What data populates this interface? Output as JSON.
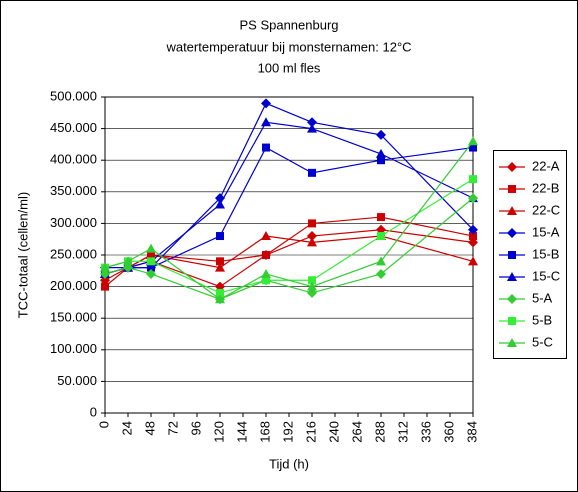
{
  "chart_data": {
    "type": "line",
    "title": "PS Spannenburg",
    "subtitle": [
      "watertemperatuur bij monsternamen: 12°C",
      "100 ml fles"
    ],
    "x_label": "Tijd (h)",
    "y_label": "TCC-totaal (cellen/ml)",
    "x": [
      0,
      24,
      48,
      120,
      168,
      216,
      288,
      384
    ],
    "xlim": [
      0,
      384
    ],
    "xticks": [
      0,
      24,
      48,
      72,
      96,
      120,
      144,
      168,
      192,
      216,
      240,
      264,
      288,
      312,
      336,
      360,
      384
    ],
    "ylim": [
      0,
      500000
    ],
    "yticks": [
      0,
      {
        "value": 50000,
        "label": "50.000"
      },
      {
        "value": 100000,
        "label": "100.000"
      },
      {
        "value": 150000,
        "label": "150.000"
      },
      {
        "value": 200000,
        "label": "200.000"
      },
      {
        "value": 250000,
        "label": "250.000"
      },
      {
        "value": 300000,
        "label": "300.000"
      },
      {
        "value": 350000,
        "label": "350.000"
      },
      {
        "value": 400000,
        "label": "400.000"
      },
      {
        "value": 450000,
        "label": "450.000"
      },
      {
        "value": 500000,
        "label": "500.000"
      }
    ],
    "grid": true,
    "legend": "right",
    "series": [
      {
        "name": "22-A",
        "color": "#cc0000",
        "marker": "diamond",
        "values": [
          210000,
          230000,
          240000,
          200000,
          250000,
          280000,
          290000,
          270000
        ]
      },
      {
        "name": "22-B",
        "color": "#cc0000",
        "marker": "square",
        "values": [
          200000,
          230000,
          250000,
          240000,
          250000,
          300000,
          310000,
          280000
        ]
      },
      {
        "name": "22-C",
        "color": "#cc0000",
        "marker": "triangle",
        "values": [
          220000,
          230000,
          250000,
          230000,
          280000,
          270000,
          280000,
          240000
        ]
      },
      {
        "name": "15-A",
        "color": "#0000cc",
        "marker": "diamond",
        "values": [
          230000,
          230000,
          230000,
          340000,
          490000,
          460000,
          440000,
          290000
        ]
      },
      {
        "name": "15-B",
        "color": "#0000cc",
        "marker": "square",
        "values": [
          220000,
          230000,
          230000,
          280000,
          420000,
          380000,
          400000,
          420000
        ]
      },
      {
        "name": "15-C",
        "color": "#0000cc",
        "marker": "triangle",
        "values": [
          220000,
          230000,
          240000,
          330000,
          460000,
          450000,
          410000,
          340000
        ]
      },
      {
        "name": "5-A",
        "color": "#33cc33",
        "marker": "diamond",
        "values": [
          220000,
          230000,
          220000,
          180000,
          210000,
          190000,
          220000,
          340000
        ]
      },
      {
        "name": "5-B",
        "color": "#33ee33",
        "marker": "square",
        "values": [
          230000,
          240000,
          240000,
          190000,
          210000,
          210000,
          280000,
          370000
        ]
      },
      {
        "name": "5-C",
        "color": "#33cc33",
        "marker": "triangle",
        "values": [
          230000,
          240000,
          260000,
          180000,
          220000,
          200000,
          240000,
          430000
        ]
      }
    ]
  }
}
